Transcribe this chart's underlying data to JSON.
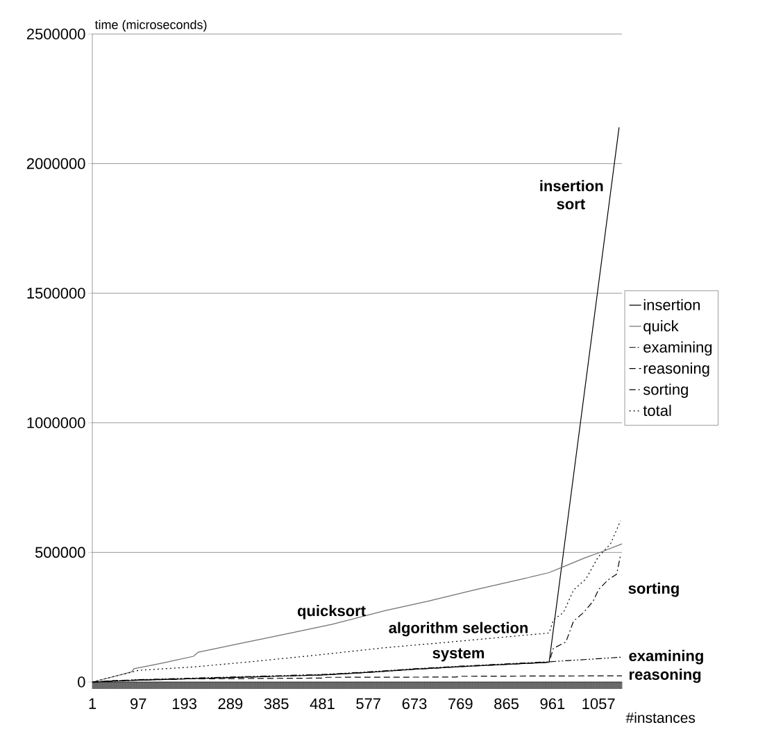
{
  "chart_data": {
    "type": "line",
    "xlabel": "#instances",
    "ylabel": "time (microseconds)",
    "xlim": [
      1,
      1106
    ],
    "xticks": [
      1,
      97,
      193,
      289,
      385,
      481,
      577,
      673,
      769,
      865,
      961,
      1057
    ],
    "ylim": [
      0,
      2500000
    ],
    "yticks": [
      0,
      500000,
      1000000,
      1500000,
      2000000,
      2500000
    ],
    "grid": "y",
    "legend": "right",
    "marker": "none",
    "series": [
      {
        "name": "insertion",
        "color": "#000000",
        "line_style": "solid",
        "x": [
          1,
          97,
          193,
          289,
          385,
          481,
          577,
          673,
          769,
          865,
          954,
          1100
        ],
        "values": [
          0,
          7000,
          12000,
          17000,
          22000,
          27000,
          37000,
          49000,
          59000,
          68000,
          76000,
          2140000
        ]
      },
      {
        "name": "quick",
        "color": "#707070",
        "line_style": "solid",
        "x": [
          1,
          40,
          83,
          88,
          150,
          212,
          222,
          300,
          400,
          500,
          611,
          700,
          800,
          900,
          954,
          979,
          1030,
          1062,
          1106
        ],
        "values": [
          0,
          18000,
          39000,
          51000,
          74000,
          99000,
          115000,
          145000,
          183000,
          222000,
          275000,
          311000,
          356000,
          398000,
          422000,
          441000,
          480000,
          501000,
          533000
        ]
      },
      {
        "name": "examining",
        "color": "#000000",
        "line_style": "dashdotdotted",
        "x": [
          1,
          97,
          193,
          289,
          385,
          481,
          577,
          673,
          769,
          865,
          954,
          1050,
          1106
        ],
        "values": [
          0,
          9000,
          14000,
          19000,
          24000,
          29000,
          39000,
          51000,
          61000,
          70000,
          78000,
          89000,
          96000
        ]
      },
      {
        "name": "reasoning",
        "color": "#000000",
        "line_style": "dashed",
        "x": [
          1,
          50,
          200,
          480,
          490,
          760,
          770,
          1106
        ],
        "values": [
          0,
          6000,
          12000,
          15000,
          18000,
          19000,
          22000,
          24000
        ]
      },
      {
        "name": "sorting",
        "color": "#000000",
        "line_style": "dashdotted",
        "x": [
          1,
          97,
          193,
          289,
          385,
          481,
          577,
          673,
          769,
          865,
          954,
          963,
          989,
          1005,
          1026,
          1046,
          1057,
          1077,
          1095,
          1103
        ],
        "values": [
          0,
          7000,
          12000,
          17000,
          22000,
          27000,
          37000,
          49000,
          59000,
          68000,
          76000,
          130000,
          154000,
          235000,
          268000,
          312000,
          356000,
          394000,
          416000,
          489000
        ]
      },
      {
        "name": "total",
        "color": "#000000",
        "line_style": "dotted",
        "x": [
          1,
          98,
          212,
          325,
          450,
          610,
          746,
          954,
          963,
          984,
          1005,
          1031,
          1057,
          1082,
          1103
        ],
        "values": [
          0,
          45000,
          58000,
          77000,
          100000,
          132000,
          154000,
          189000,
          240000,
          268000,
          355000,
          398000,
          484000,
          532000,
          622000
        ]
      }
    ],
    "annotations": [
      {
        "text": "insertion sort",
        "x": 1082,
        "y": 1880000
      },
      {
        "text": "quicksort",
        "x": 500,
        "y": 222000
      },
      {
        "text": "algorithm selection",
        "x": 765,
        "y": 156000
      },
      {
        "text": "system",
        "x": 765,
        "y": 59000
      },
      {
        "text": "sorting",
        "x": 1057,
        "y": 356000
      },
      {
        "text": "examining",
        "x": 1106,
        "y": 96000
      },
      {
        "text": "reasoning",
        "x": 1106,
        "y": 24000
      }
    ]
  }
}
